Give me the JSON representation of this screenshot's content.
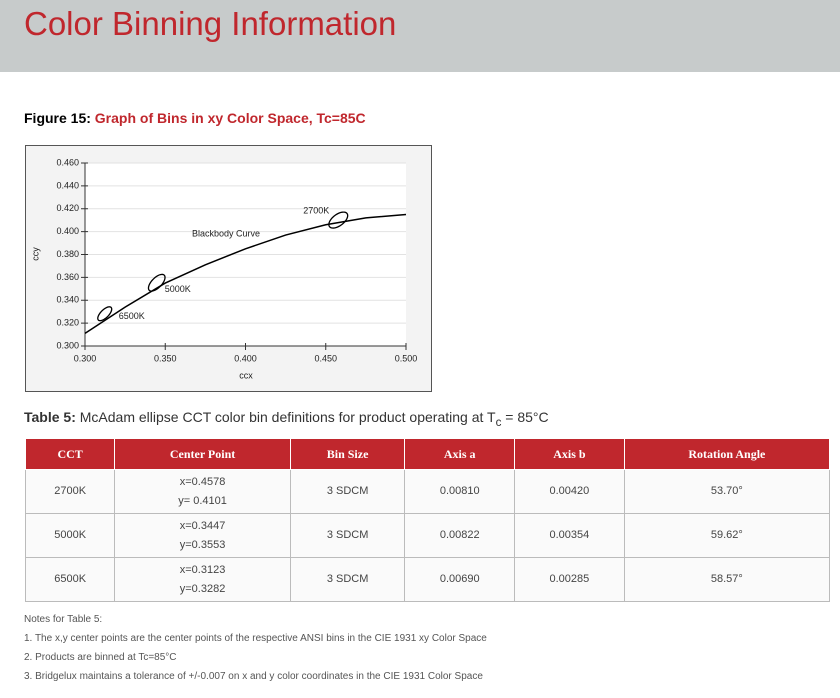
{
  "header": {
    "title": "Color Binning Information"
  },
  "figure": {
    "label": "Figure 15:",
    "caption": "Graph of Bins in xy Color Space, Tc=85C"
  },
  "chart_data": {
    "type": "line",
    "xlabel": "ccx",
    "ylabel": "ccy",
    "xlim": [
      0.3,
      0.5
    ],
    "ylim": [
      0.3,
      0.46
    ],
    "xticks": [
      {
        "value": 0.3,
        "label": "0.300"
      },
      {
        "value": 0.35,
        "label": "0.350"
      },
      {
        "value": 0.4,
        "label": "0.400"
      },
      {
        "value": 0.45,
        "label": "0.450"
      },
      {
        "value": 0.5,
        "label": "0.500"
      }
    ],
    "yticks": [
      {
        "value": 0.3,
        "label": "0.300"
      },
      {
        "value": 0.32,
        "label": "0.320"
      },
      {
        "value": 0.34,
        "label": "0.340"
      },
      {
        "value": 0.36,
        "label": "0.360"
      },
      {
        "value": 0.38,
        "label": "0.380"
      },
      {
        "value": 0.4,
        "label": "0.400"
      },
      {
        "value": 0.42,
        "label": "0.420"
      },
      {
        "value": 0.44,
        "label": "0.440"
      },
      {
        "value": 0.46,
        "label": "0.460"
      }
    ],
    "grid": true,
    "series": [
      {
        "name": "Blackbody Curve",
        "color": "#000000",
        "x": [
          0.3,
          0.325,
          0.35,
          0.375,
          0.4,
          0.425,
          0.45,
          0.475,
          0.5
        ],
        "values": [
          0.311,
          0.334,
          0.355,
          0.371,
          0.385,
          0.397,
          0.406,
          0.412,
          0.415
        ]
      }
    ],
    "ellipses": [
      {
        "name": "2700K",
        "x": 0.4578,
        "y": 0.4101,
        "a": 0.0081,
        "b": 0.0042,
        "angle": 53.7
      },
      {
        "name": "5000K",
        "x": 0.3447,
        "y": 0.3553,
        "a": 0.00822,
        "b": 0.00354,
        "angle": 59.62
      },
      {
        "name": "6500K",
        "x": 0.3123,
        "y": 0.3282,
        "a": 0.0069,
        "b": 0.00285,
        "angle": 58.57
      }
    ]
  },
  "table_title": {
    "label": "Table 5:",
    "text": "McAdam ellipse CCT color bin definitions for product operating at T",
    "subscript": "c",
    "suffix": " = 85°C"
  },
  "table": {
    "columns": [
      "CCT",
      "Center Point",
      "Bin Size",
      "Axis a",
      "Axis b",
      "Rotation Angle"
    ],
    "rows": [
      [
        "2700K",
        [
          "x=0.4578",
          "y= 0.4101"
        ],
        "3 SDCM",
        "0.00810",
        "0.00420",
        "53.70°"
      ],
      [
        "5000K",
        [
          "x=0.3447",
          "y=0.3553"
        ],
        "3 SDCM",
        "0.00822",
        "0.00354",
        "59.62°"
      ],
      [
        "6500K",
        [
          "x=0.3123",
          "y=0.3282"
        ],
        "3 SDCM",
        "0.00690",
        "0.00285",
        "58.57°"
      ]
    ]
  },
  "notes": {
    "title": "Notes for Table 5:",
    "items": [
      "1. The x,y center points are the center points of the respective ANSI bins in the CIE 1931 xy Color Space",
      "2. Products are binned at Tc=85°C",
      "3. Bridgelux maintains a tolerance of +/-0.007 on x and y color coordinates in the CIE 1931 Color Space"
    ]
  }
}
